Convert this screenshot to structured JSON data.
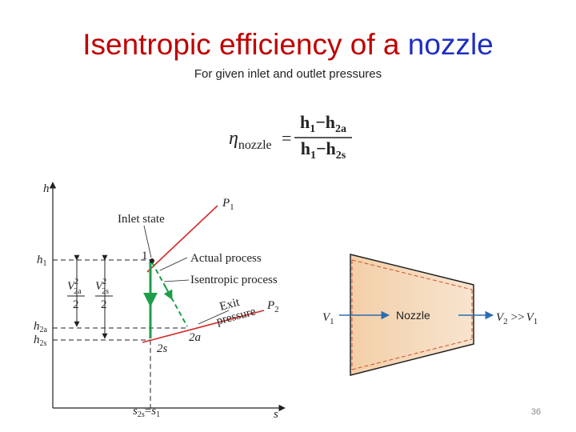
{
  "title": {
    "text": "Isentropic efficiency of a",
    "highlight": "nozzle"
  },
  "subtitle": "For given inlet and outlet pressures",
  "equation": {
    "symbol": "η",
    "symbol_sub": "nozzle",
    "equals": "=",
    "numerator": {
      "a": "h",
      "a_sub": "1",
      "op": "−",
      "b": "h",
      "b_sub": "2a"
    },
    "denominator": {
      "a": "h",
      "a_sub": "1",
      "op": "−",
      "b": "h",
      "b_sub": "2s"
    }
  },
  "hs_diagram": {
    "y_axis": "h",
    "x_axis": "s",
    "p1": {
      "base": "P",
      "sub": "1"
    },
    "p2": {
      "base": "P",
      "sub": "2"
    },
    "inlet_state": "Inlet state",
    "state_1": "1",
    "state_2a": "2a",
    "state_2s": "2s",
    "actual_process": "Actual process",
    "isentropic_process": "Isentropic process",
    "exit_pressure": [
      "Exit",
      "pressure"
    ],
    "h1": {
      "base": "h",
      "sub": "1"
    },
    "h2a": {
      "base": "h",
      "sub": "2a"
    },
    "h2s": {
      "base": "h",
      "sub": "2s"
    },
    "ke_actual": {
      "base": "V",
      "sup": "2",
      "sub": "2a",
      "den": "2"
    },
    "ke_isentropic": {
      "base": "V",
      "sup": "2",
      "sub": "2s",
      "den": "2"
    },
    "s_tick": {
      "a": "s",
      "a_sub": "2s",
      "eq": "=",
      "b": "s",
      "b_sub": "1"
    }
  },
  "nozzle": {
    "label": "Nozzle",
    "inlet": {
      "base": "V",
      "sub": "1"
    },
    "outlet": {
      "base": "V",
      "sub": "2",
      "rel": ">>",
      "base2": "V",
      "sub2": "1"
    }
  },
  "page_number": "36"
}
